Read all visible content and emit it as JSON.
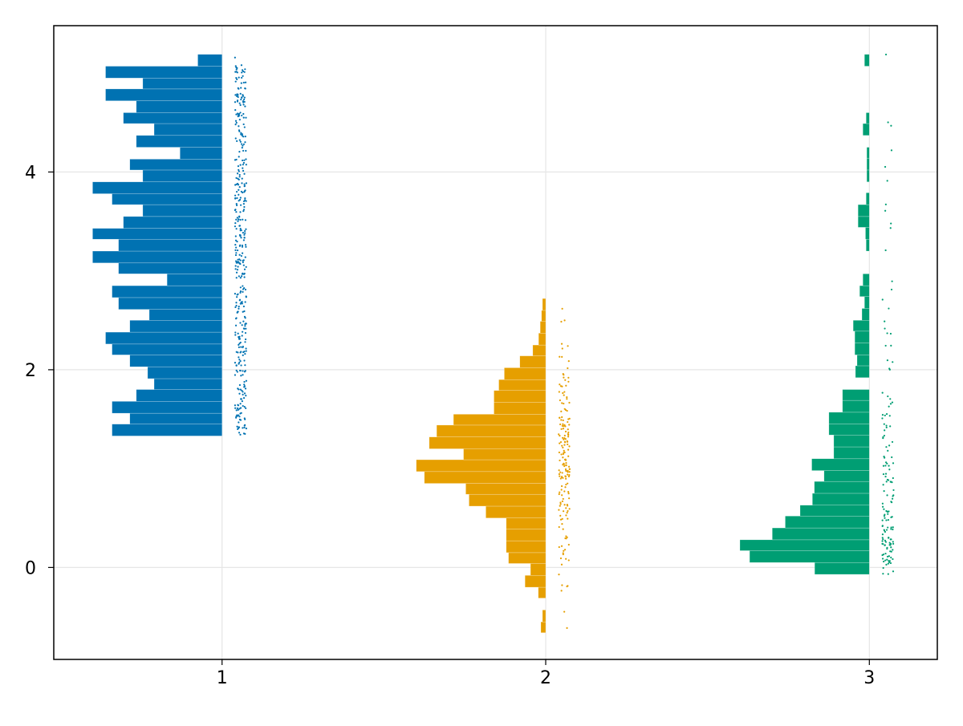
{
  "chart_data": {
    "type": "histogram",
    "orientation": "horizontal-rainclouds",
    "xlim": [
      0.48,
      3.21
    ],
    "ylim": [
      -0.93,
      5.48
    ],
    "xticks": [
      1,
      2,
      3
    ],
    "yticks": [
      0,
      2,
      4
    ],
    "xtick_labels": [
      "1",
      "2",
      "3"
    ],
    "ytick_labels": [
      "0",
      "2",
      "4"
    ],
    "grid": true,
    "series": [
      {
        "position": 1,
        "color": "#0072B2",
        "bin_width": 0.117,
        "bins": [
          {
            "y0": 1.33,
            "y1": 1.45,
            "width": 0.34
          },
          {
            "y0": 1.45,
            "y1": 1.56,
            "width": 0.285
          },
          {
            "y0": 1.56,
            "y1": 1.68,
            "width": 0.34
          },
          {
            "y0": 1.68,
            "y1": 1.8,
            "width": 0.265
          },
          {
            "y0": 1.8,
            "y1": 1.91,
            "width": 0.21
          },
          {
            "y0": 1.91,
            "y1": 2.03,
            "width": 0.23
          },
          {
            "y0": 2.03,
            "y1": 2.15,
            "width": 0.285
          },
          {
            "y0": 2.15,
            "y1": 2.26,
            "width": 0.34
          },
          {
            "y0": 2.26,
            "y1": 2.38,
            "width": 0.36
          },
          {
            "y0": 2.38,
            "y1": 2.5,
            "width": 0.285
          },
          {
            "y0": 2.5,
            "y1": 2.61,
            "width": 0.225
          },
          {
            "y0": 2.61,
            "y1": 2.73,
            "width": 0.32
          },
          {
            "y0": 2.73,
            "y1": 2.85,
            "width": 0.34
          },
          {
            "y0": 2.85,
            "y1": 2.97,
            "width": 0.17
          },
          {
            "y0": 2.97,
            "y1": 3.08,
            "width": 0.32
          },
          {
            "y0": 3.08,
            "y1": 3.2,
            "width": 0.4
          },
          {
            "y0": 3.2,
            "y1": 3.32,
            "width": 0.32
          },
          {
            "y0": 3.32,
            "y1": 3.43,
            "width": 0.4
          },
          {
            "y0": 3.43,
            "y1": 3.55,
            "width": 0.305
          },
          {
            "y0": 3.55,
            "y1": 3.67,
            "width": 0.245
          },
          {
            "y0": 3.67,
            "y1": 3.78,
            "width": 0.34
          },
          {
            "y0": 3.78,
            "y1": 3.9,
            "width": 0.4
          },
          {
            "y0": 3.9,
            "y1": 4.02,
            "width": 0.245
          },
          {
            "y0": 4.02,
            "y1": 4.13,
            "width": 0.285
          },
          {
            "y0": 4.13,
            "y1": 4.25,
            "width": 0.13
          },
          {
            "y0": 4.25,
            "y1": 4.37,
            "width": 0.265
          },
          {
            "y0": 4.37,
            "y1": 4.49,
            "width": 0.21
          },
          {
            "y0": 4.49,
            "y1": 4.6,
            "width": 0.305
          },
          {
            "y0": 4.6,
            "y1": 4.72,
            "width": 0.265
          },
          {
            "y0": 4.72,
            "y1": 4.84,
            "width": 0.36
          },
          {
            "y0": 4.84,
            "y1": 4.95,
            "width": 0.245
          },
          {
            "y0": 4.95,
            "y1": 5.07,
            "width": 0.36
          },
          {
            "y0": 5.07,
            "y1": 5.19,
            "width": 0.075
          }
        ]
      },
      {
        "position": 2,
        "color": "#E69F00",
        "bin_width": 0.117,
        "bins": [
          {
            "y0": -0.66,
            "y1": -0.55,
            "width": 0.015
          },
          {
            "y0": -0.55,
            "y1": -0.43,
            "width": 0.01
          },
          {
            "y0": -0.31,
            "y1": -0.2,
            "width": 0.023
          },
          {
            "y0": -0.2,
            "y1": -0.08,
            "width": 0.064
          },
          {
            "y0": -0.08,
            "y1": 0.04,
            "width": 0.047
          },
          {
            "y0": 0.04,
            "y1": 0.15,
            "width": 0.115
          },
          {
            "y0": 0.15,
            "y1": 0.27,
            "width": 0.122
          },
          {
            "y0": 0.27,
            "y1": 0.39,
            "width": 0.122
          },
          {
            "y0": 0.39,
            "y1": 0.5,
            "width": 0.122
          },
          {
            "y0": 0.5,
            "y1": 0.62,
            "width": 0.185
          },
          {
            "y0": 0.62,
            "y1": 0.74,
            "width": 0.237
          },
          {
            "y0": 0.74,
            "y1": 0.85,
            "width": 0.247
          },
          {
            "y0": 0.85,
            "y1": 0.97,
            "width": 0.375
          },
          {
            "y0": 0.97,
            "y1": 1.09,
            "width": 0.4
          },
          {
            "y0": 1.09,
            "y1": 1.2,
            "width": 0.254
          },
          {
            "y0": 1.2,
            "y1": 1.32,
            "width": 0.36
          },
          {
            "y0": 1.32,
            "y1": 1.44,
            "width": 0.337
          },
          {
            "y0": 1.44,
            "y1": 1.55,
            "width": 0.285
          },
          {
            "y0": 1.55,
            "y1": 1.67,
            "width": 0.16
          },
          {
            "y0": 1.67,
            "y1": 1.79,
            "width": 0.16
          },
          {
            "y0": 1.79,
            "y1": 1.9,
            "width": 0.145
          },
          {
            "y0": 1.9,
            "y1": 2.02,
            "width": 0.128
          },
          {
            "y0": 2.02,
            "y1": 2.14,
            "width": 0.08
          },
          {
            "y0": 2.14,
            "y1": 2.25,
            "width": 0.04
          },
          {
            "y0": 2.25,
            "y1": 2.37,
            "width": 0.022
          },
          {
            "y0": 2.37,
            "y1": 2.49,
            "width": 0.017
          },
          {
            "y0": 2.49,
            "y1": 2.6,
            "width": 0.013
          },
          {
            "y0": 2.6,
            "y1": 2.72,
            "width": 0.01
          }
        ]
      },
      {
        "position": 3,
        "color": "#009E73",
        "bin_width": 0.117,
        "bins": [
          {
            "y0": -0.07,
            "y1": 0.05,
            "width": 0.169
          },
          {
            "y0": 0.05,
            "y1": 0.17,
            "width": 0.37
          },
          {
            "y0": 0.17,
            "y1": 0.28,
            "width": 0.4
          },
          {
            "y0": 0.28,
            "y1": 0.4,
            "width": 0.3
          },
          {
            "y0": 0.4,
            "y1": 0.52,
            "width": 0.26
          },
          {
            "y0": 0.52,
            "y1": 0.63,
            "width": 0.214
          },
          {
            "y0": 0.63,
            "y1": 0.75,
            "width": 0.176
          },
          {
            "y0": 0.75,
            "y1": 0.87,
            "width": 0.17
          },
          {
            "y0": 0.87,
            "y1": 0.98,
            "width": 0.14
          },
          {
            "y0": 0.98,
            "y1": 1.1,
            "width": 0.178
          },
          {
            "y0": 1.1,
            "y1": 1.22,
            "width": 0.11
          },
          {
            "y0": 1.22,
            "y1": 1.34,
            "width": 0.11
          },
          {
            "y0": 1.34,
            "y1": 1.45,
            "width": 0.125
          },
          {
            "y0": 1.45,
            "y1": 1.57,
            "width": 0.125
          },
          {
            "y0": 1.57,
            "y1": 1.69,
            "width": 0.083
          },
          {
            "y0": 1.69,
            "y1": 1.8,
            "width": 0.083
          },
          {
            "y0": 1.92,
            "y1": 2.04,
            "width": 0.043
          },
          {
            "y0": 2.04,
            "y1": 2.15,
            "width": 0.038
          },
          {
            "y0": 2.15,
            "y1": 2.27,
            "width": 0.045
          },
          {
            "y0": 2.27,
            "y1": 2.39,
            "width": 0.045
          },
          {
            "y0": 2.39,
            "y1": 2.5,
            "width": 0.05
          },
          {
            "y0": 2.5,
            "y1": 2.62,
            "width": 0.023
          },
          {
            "y0": 2.62,
            "y1": 2.74,
            "width": 0.015
          },
          {
            "y0": 2.74,
            "y1": 2.85,
            "width": 0.03
          },
          {
            "y0": 2.85,
            "y1": 2.97,
            "width": 0.02
          },
          {
            "y0": 3.2,
            "y1": 3.32,
            "width": 0.01
          },
          {
            "y0": 3.32,
            "y1": 3.44,
            "width": 0.012
          },
          {
            "y0": 3.44,
            "y1": 3.55,
            "width": 0.035
          },
          {
            "y0": 3.55,
            "y1": 3.67,
            "width": 0.035
          },
          {
            "y0": 3.67,
            "y1": 3.79,
            "width": 0.01
          },
          {
            "y0": 3.9,
            "y1": 4.02,
            "width": 0.008
          },
          {
            "y0": 4.02,
            "y1": 4.14,
            "width": 0.008
          },
          {
            "y0": 4.14,
            "y1": 4.25,
            "width": 0.008
          },
          {
            "y0": 4.37,
            "y1": 4.49,
            "width": 0.02
          },
          {
            "y0": 4.49,
            "y1": 4.6,
            "width": 0.01
          },
          {
            "y0": 5.07,
            "y1": 5.19,
            "width": 0.015
          }
        ]
      }
    ]
  }
}
